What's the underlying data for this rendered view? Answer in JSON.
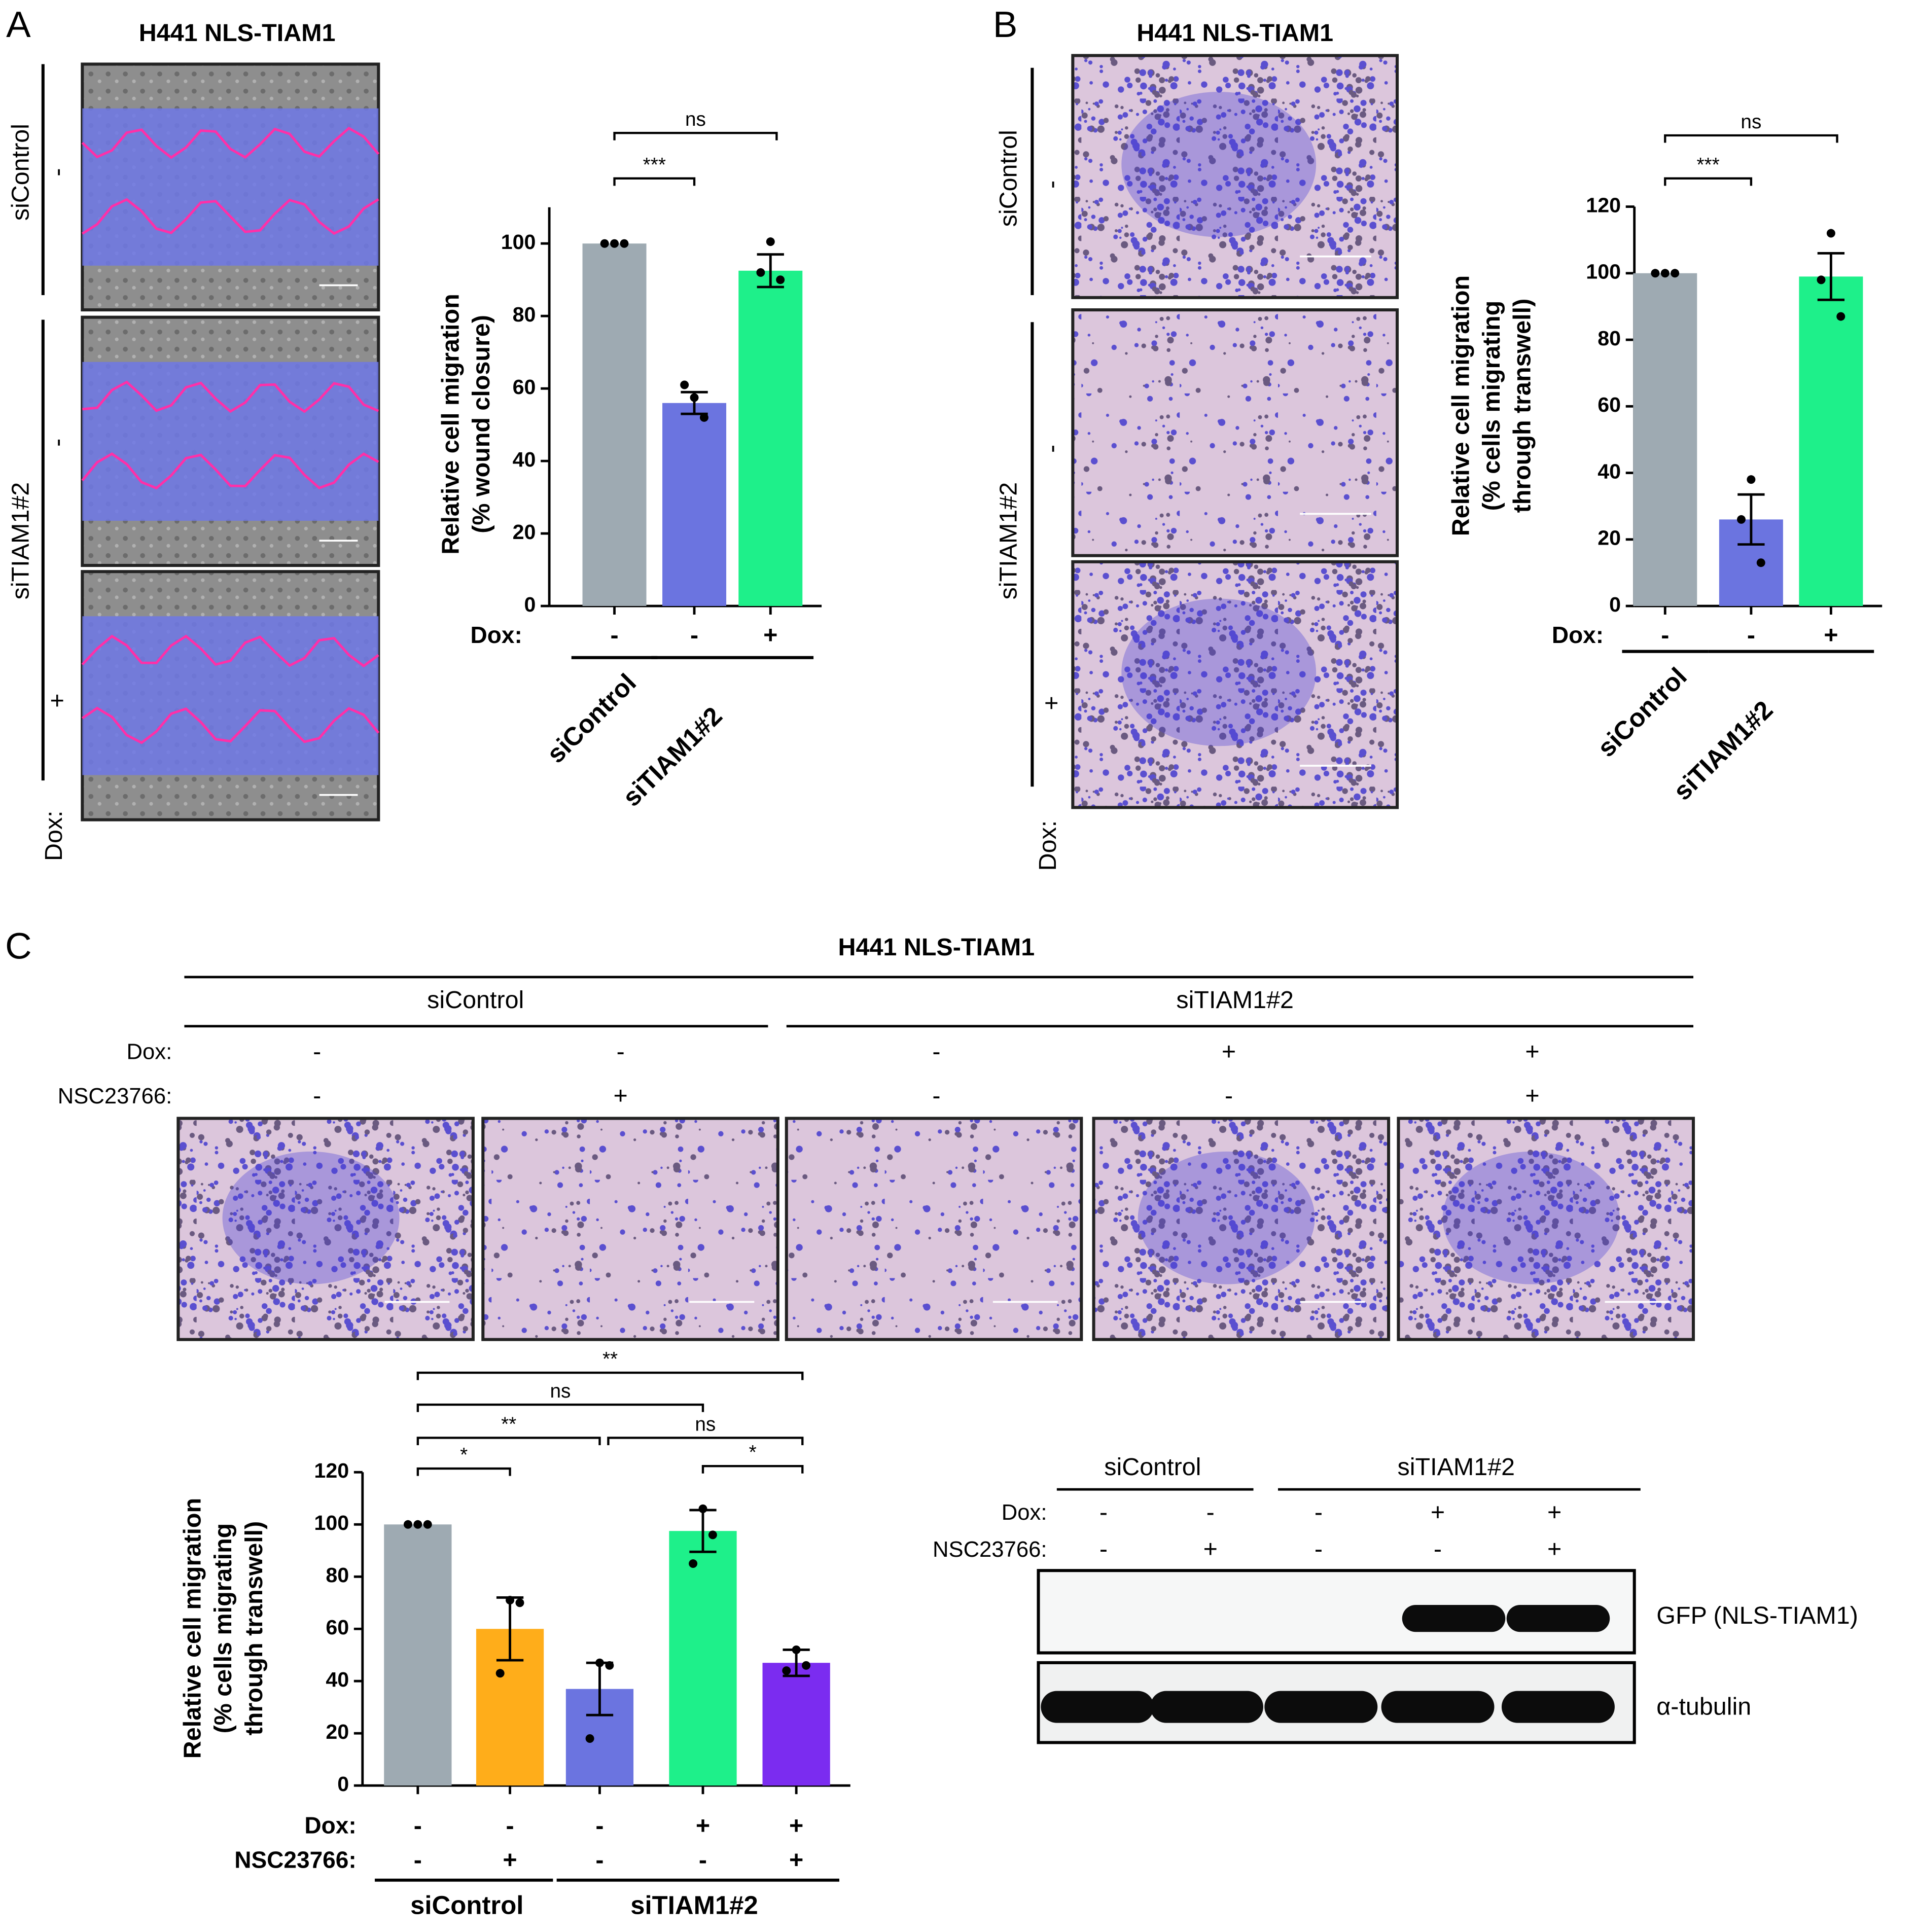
{
  "panels": [
    {
      "label": "A",
      "title": "H441 NLS-TIAM1",
      "rows": [
        "siControl",
        "siTIAM1#2"
      ],
      "dox": [
        "-",
        "-",
        "+"
      ],
      "dox_label": "Dox:"
    },
    {
      "label": "B",
      "title": "H441 NLS-TIAM1",
      "rows": [
        "siControl",
        "siTIAM1#2"
      ],
      "dox": [
        "-",
        "-",
        "+"
      ],
      "dox_label": "Dox:"
    },
    {
      "label": "C",
      "title": "H441 NLS-TIAM1",
      "groups": [
        "siControl",
        "siTIAM1#2"
      ],
      "rows": [
        {
          "label": "Dox:",
          "values": [
            "-",
            "-",
            "-",
            "+",
            "+"
          ]
        },
        {
          "label": "NSC23766:",
          "values": [
            "-",
            "+",
            "-",
            "-",
            "+"
          ]
        }
      ]
    }
  ],
  "chart_data": [
    {
      "type": "bar",
      "ylabel": [
        "Relative cell migration",
        "(% wound closure)"
      ],
      "values": [
        100,
        56,
        92.5
      ],
      "errors": [
        0,
        3,
        4.5
      ],
      "colors": [
        "#9eaab2",
        "#6b74e0",
        "#1ef08a"
      ],
      "points": [
        [
          100,
          100,
          100
        ],
        [
          57.5,
          61,
          52
        ],
        [
          100.5,
          92,
          90
        ]
      ],
      "ylim": [
        0,
        110
      ],
      "yticks": [
        0,
        20,
        40,
        60,
        80,
        100
      ],
      "rows": [
        {
          "label": "Dox:",
          "values": [
            "-",
            "-",
            "+"
          ]
        }
      ],
      "groups": [
        {
          "label": "siControl",
          "from": 0,
          "to": 0
        },
        {
          "label": "siTIAM1#2",
          "from": 1,
          "to": 2
        }
      ],
      "brackets": [
        {
          "from": 0,
          "to": 1,
          "label": "***"
        },
        {
          "from": 0,
          "to": 2,
          "label": "ns"
        }
      ]
    },
    {
      "type": "bar",
      "ylabel": [
        "Relative cell migration",
        "(% cells migrating",
        "through transwell)"
      ],
      "values": [
        100,
        26,
        99
      ],
      "errors": [
        0,
        7.5,
        7
      ],
      "colors": [
        "#9eaab2",
        "#6b74e0",
        "#1ef08a"
      ],
      "points": [
        [
          100,
          100,
          100
        ],
        [
          38,
          26,
          13
        ],
        [
          112,
          98,
          87
        ]
      ],
      "ylim": [
        0,
        120
      ],
      "yticks": [
        0,
        20,
        40,
        60,
        80,
        100,
        120
      ],
      "rows": [
        {
          "label": "Dox:",
          "values": [
            "-",
            "-",
            "+"
          ]
        }
      ],
      "groups": [
        {
          "label": "siControl",
          "from": 0,
          "to": 0
        },
        {
          "label": "siTIAM1#2",
          "from": 1,
          "to": 2
        }
      ],
      "brackets": [
        {
          "from": 0,
          "to": 1,
          "label": "***"
        },
        {
          "from": 0,
          "to": 2,
          "label": "ns"
        }
      ]
    },
    {
      "type": "bar",
      "ylabel": [
        "Relative cell migration",
        "(% cells migrating",
        "through transwell)"
      ],
      "values": [
        100,
        60,
        37,
        97.5,
        47
      ],
      "errors": [
        0,
        12,
        10,
        8,
        5
      ],
      "colors": [
        "#9eaab2",
        "#ffad1a",
        "#6b74e0",
        "#1ef08a",
        "#7b2cf0"
      ],
      "points": [
        [
          100,
          100,
          100
        ],
        [
          71,
          43,
          70
        ],
        [
          47,
          18,
          46
        ],
        [
          106,
          85,
          96
        ],
        [
          52,
          44,
          46
        ]
      ],
      "ylim": [
        0,
        120
      ],
      "yticks": [
        0,
        20,
        40,
        60,
        80,
        100,
        120
      ],
      "rows": [
        {
          "label": "Dox:",
          "values": [
            "-",
            "-",
            "-",
            "+",
            "+"
          ]
        },
        {
          "label": "NSC23766:",
          "values": [
            "-",
            "+",
            "-",
            "-",
            "+"
          ]
        }
      ],
      "groups": [
        {
          "label": "siControl",
          "from": 0,
          "to": 1
        },
        {
          "label": "siTIAM1#2",
          "from": 2,
          "to": 4
        }
      ],
      "brackets": [
        {
          "from": 0,
          "to": 1,
          "label": "*"
        },
        {
          "from": 0,
          "to": 2,
          "label": "**"
        },
        {
          "from": 2,
          "to": 4,
          "label": "ns"
        },
        {
          "from": 3,
          "to": 4,
          "label": "*"
        },
        {
          "from": 0,
          "to": 3,
          "label": "ns"
        },
        {
          "from": 0,
          "to": 4,
          "label": "**"
        }
      ]
    }
  ],
  "blot": {
    "groups": [
      "siControl",
      "siTIAM1#2"
    ],
    "rows": [
      {
        "label": "Dox:",
        "values": [
          "-",
          "-",
          "-",
          "+",
          "+"
        ]
      },
      {
        "label": "NSC23766:",
        "values": [
          "-",
          "+",
          "-",
          "-",
          "+"
        ]
      }
    ],
    "bands": [
      "GFP (NLS-TIAM1)",
      "α-tubulin"
    ]
  }
}
